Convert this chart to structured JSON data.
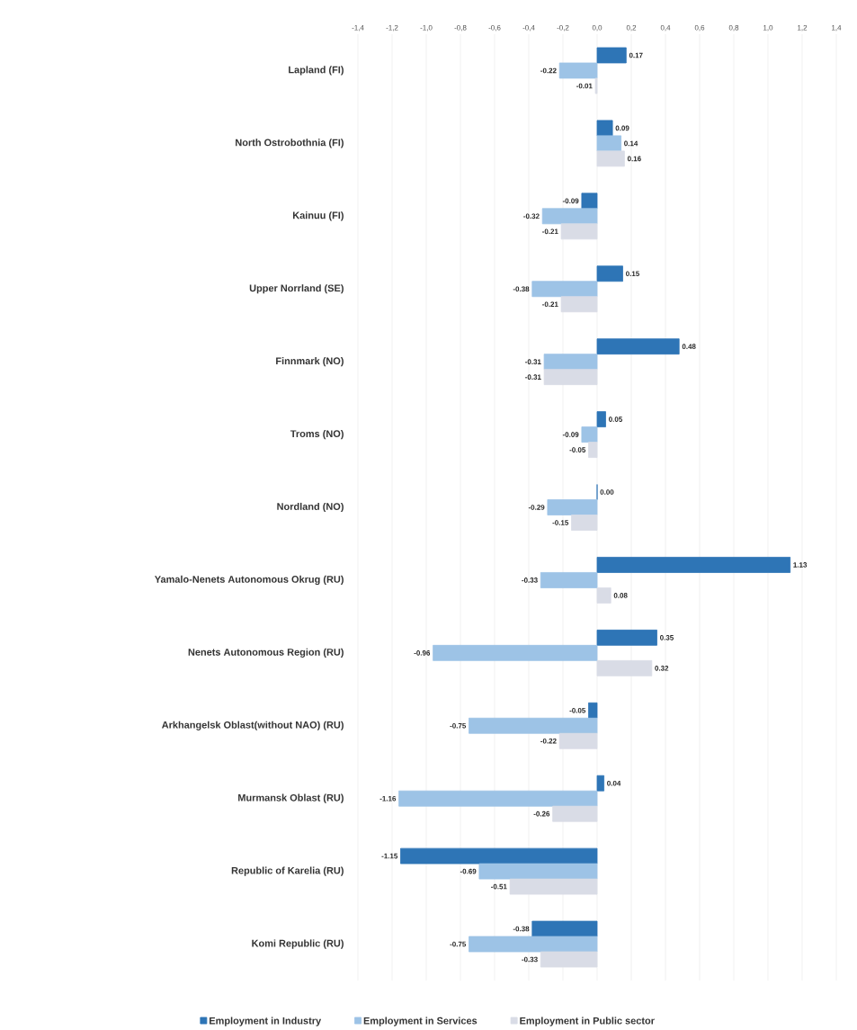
{
  "chart_data": {
    "type": "bar",
    "orientation": "horizontal",
    "categories": [
      "Lapland (FI)",
      "North Ostrobothnia (FI)",
      "Kainuu (FI)",
      "Upper Norrland (SE)",
      "Finnmark (NO)",
      "Troms (NO)",
      "Nordland (NO)",
      "Yamalo-Nenets Autonomous Okrug (RU)",
      "Nenets Autonomous Region (RU)",
      "Arkhangelsk Oblast(without NAO) (RU)",
      "Murmansk Oblast (RU)",
      "Republic of Karelia (RU)",
      "Komi Republic (RU)"
    ],
    "series": [
      {
        "name": "Employment in Industry",
        "color": "#2e75b6",
        "values": [
          0.17,
          0.09,
          -0.09,
          0.15,
          0.48,
          0.05,
          0.0,
          1.13,
          0.35,
          -0.05,
          0.04,
          -1.15,
          -0.38
        ],
        "value_labels": [
          "0.17",
          "0.09",
          "-0.09",
          "0.15",
          "0.48",
          "0.05",
          "0.00",
          "1.13",
          "0.35",
          "-0.05",
          "0.04",
          "-1.15",
          "-0.38"
        ]
      },
      {
        "name": "Employment in Services",
        "color": "#9dc3e6",
        "values": [
          -0.22,
          0.14,
          -0.32,
          -0.38,
          -0.31,
          -0.09,
          -0.29,
          -0.33,
          -0.96,
          -0.75,
          -1.16,
          -0.69,
          -0.75
        ],
        "value_labels": [
          "-0.22",
          "0.14",
          "-0.32",
          "-0.38",
          "-0.31",
          "-0.09",
          "-0.29",
          "-0.33",
          "-0.96",
          "-0.75",
          "-1.16",
          "-0.69",
          "-0.75"
        ]
      },
      {
        "name": "Employment in Public sector",
        "color": "#d9dce6",
        "values": [
          -0.01,
          0.16,
          -0.21,
          -0.21,
          -0.31,
          -0.05,
          -0.15,
          0.08,
          0.32,
          -0.22,
          -0.26,
          -0.51,
          -0.33
        ],
        "value_labels": [
          "-0.01",
          "0.16",
          "-0.21",
          "-0.21",
          "-0.31",
          "-0.05",
          "-0.15",
          "0.08",
          "0.32",
          "-0.22",
          "-0.26",
          "-0.51",
          "-0.33"
        ]
      }
    ],
    "xlim": [
      -1.4,
      1.4
    ],
    "xticks": [
      {
        "value": -1.4,
        "label": "-1,4"
      },
      {
        "value": -1.2,
        "label": "-1,2"
      },
      {
        "value": -1.0,
        "label": "-1,0"
      },
      {
        "value": -0.8,
        "label": "-0,8"
      },
      {
        "value": -0.6,
        "label": "-0,6"
      },
      {
        "value": -0.4,
        "label": "-0,4"
      },
      {
        "value": -0.2,
        "label": "-0,2"
      },
      {
        "value": 0.0,
        "label": "0,0"
      },
      {
        "value": 0.2,
        "label": "0,2"
      },
      {
        "value": 0.4,
        "label": "0,4"
      },
      {
        "value": 0.6,
        "label": "0,6"
      },
      {
        "value": 0.8,
        "label": "0,8"
      },
      {
        "value": 1.0,
        "label": "1,0"
      },
      {
        "value": 1.2,
        "label": "1,2"
      },
      {
        "value": 1.4,
        "label": "1,4"
      }
    ],
    "grid": "x",
    "legend": "bottom"
  }
}
